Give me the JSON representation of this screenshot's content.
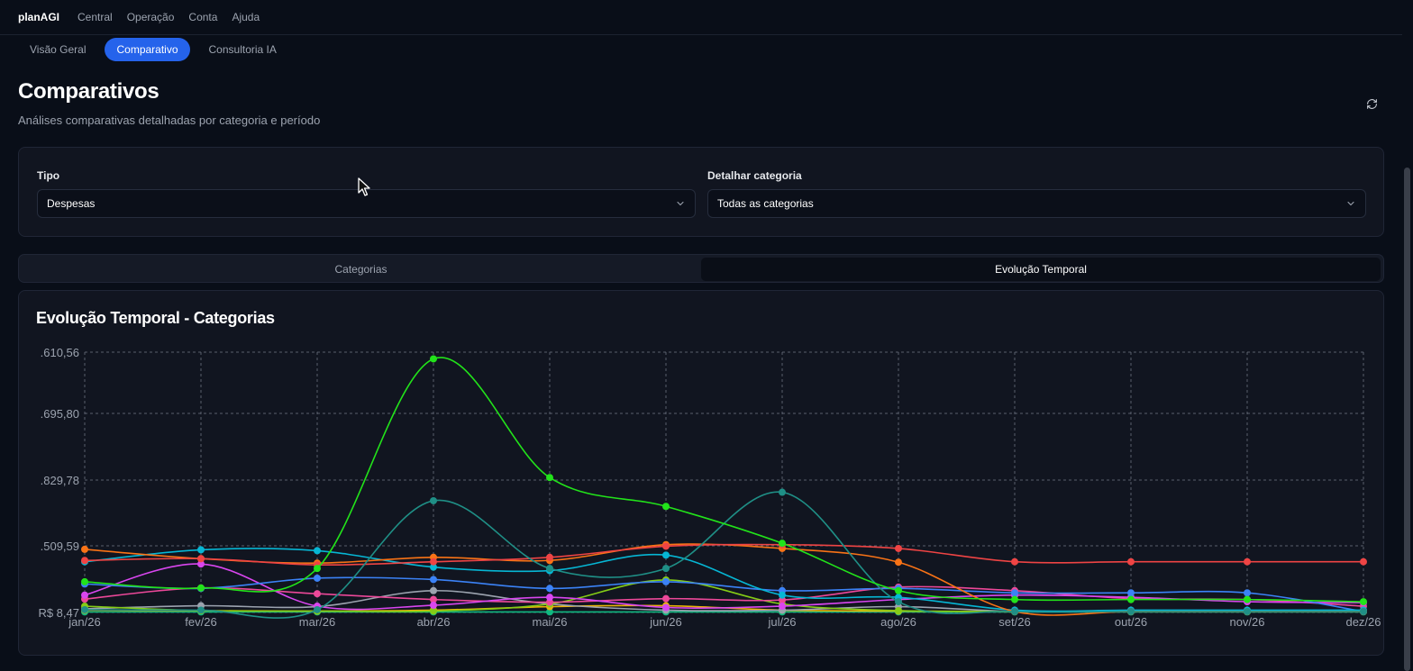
{
  "app": {
    "brand": "planAGI"
  },
  "nav": [
    {
      "label": "Central"
    },
    {
      "label": "Operação"
    },
    {
      "label": "Conta"
    },
    {
      "label": "Ajuda"
    }
  ],
  "subnav": [
    {
      "label": "Visão Geral",
      "active": false
    },
    {
      "label": "Comparativo",
      "active": true
    },
    {
      "label": "Consultoria IA",
      "active": false
    }
  ],
  "page": {
    "title": "Comparativos",
    "subtitle": "Análises comparativas detalhadas por categoria e período",
    "refresh_icon": "refresh-icon"
  },
  "filters": {
    "tipo_label": "Tipo",
    "tipo_value": "Despesas",
    "categoria_label": "Detalhar categoria",
    "categoria_value": "Todas as categorias"
  },
  "tabs": [
    {
      "label": "Categorias",
      "active": false
    },
    {
      "label": "Evolução Temporal",
      "active": true
    }
  ],
  "chart_card": {
    "title": "Evolução Temporal - Categorias"
  },
  "chart_data": {
    "type": "line",
    "title": "Evolução Temporal - Categorias",
    "categories": [
      "jan/26",
      "fev/26",
      "mar/26",
      "abr/26",
      "mai/26",
      "jun/26",
      "jul/26",
      "ago/26",
      "set/26",
      "out/26",
      "nov/26",
      "dez/26"
    ],
    "y_tick_labels": [
      ".610,56",
      ".695,80",
      ".829,78",
      ".509,59",
      "R$ 8,47"
    ],
    "y_tick_values": [
      7610.56,
      5695.8,
      3829.78,
      1509.59,
      8.47
    ],
    "ylim": [
      8.47,
      7610.56
    ],
    "grid": true,
    "series": [
      {
        "color": "#22e31a",
        "values": [
          700,
          560,
          1000,
          7400,
          3900,
          2900,
          1600,
          500,
          300,
          300,
          300,
          250
        ]
      },
      {
        "color": "#1f8f86",
        "values": [
          70,
          60,
          70,
          3100,
          1000,
          1000,
          3400,
          250,
          30,
          30,
          30,
          30
        ]
      },
      {
        "color": "#ef4444",
        "values": [
          1180,
          1220,
          1080,
          1150,
          1250,
          1500,
          1550,
          1450,
          1150,
          1150,
          1150,
          1150
        ]
      },
      {
        "color": "#f97316",
        "values": [
          1430,
          1220,
          1120,
          1250,
          1180,
          1550,
          1450,
          1140,
          30,
          30,
          30,
          30
        ]
      },
      {
        "color": "#06b6d4",
        "values": [
          1150,
          1420,
          1400,
          1030,
          950,
          1300,
          400,
          350,
          60,
          60,
          60,
          60
        ]
      },
      {
        "color": "#3b82f6",
        "values": [
          650,
          550,
          780,
          750,
          550,
          700,
          500,
          550,
          450,
          450,
          450,
          30
        ]
      },
      {
        "color": "#d946ef",
        "values": [
          400,
          1100,
          150,
          170,
          350,
          120,
          150,
          300,
          400,
          350,
          250,
          230
        ]
      },
      {
        "color": "#ec4899",
        "values": [
          310,
          560,
          430,
          300,
          240,
          320,
          290,
          580,
          500,
          320,
          300,
          150
        ]
      },
      {
        "color": "#84cc16",
        "values": [
          150,
          50,
          40,
          40,
          200,
          740,
          200,
          50,
          30,
          30,
          30,
          30
        ]
      },
      {
        "color": "#9ca3af",
        "values": [
          90,
          160,
          140,
          500,
          200,
          60,
          60,
          140,
          30,
          30,
          30,
          30
        ]
      },
      {
        "color": "#eab308",
        "values": [
          60,
          50,
          40,
          60,
          140,
          160,
          60,
          40,
          30,
          30,
          30,
          30
        ]
      },
      {
        "color": "#10b981",
        "values": [
          20,
          20,
          20,
          20,
          20,
          20,
          20,
          20,
          20,
          20,
          20,
          20
        ]
      }
    ]
  }
}
